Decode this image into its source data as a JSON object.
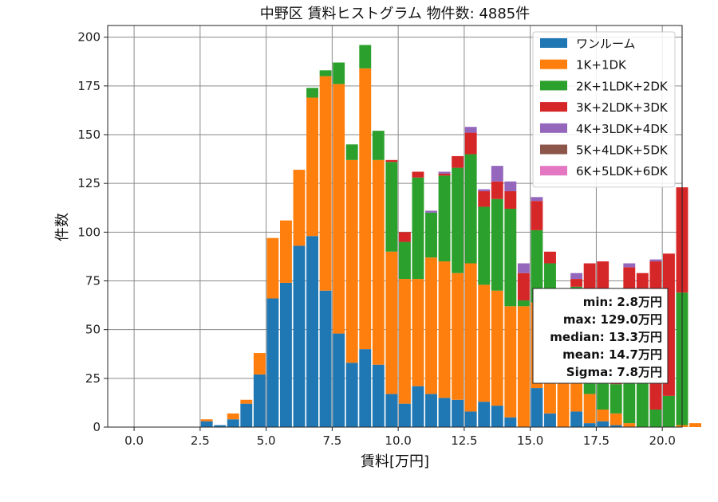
{
  "chart_data": {
    "type": "bar",
    "stacked": true,
    "title": "中野区 賃料ヒストグラム 物件数: 4885件",
    "xlabel": "賃料[万円]",
    "ylabel": "件数",
    "xlim": [
      -1.0,
      20.75
    ],
    "ylim": [
      0,
      206
    ],
    "xticks": [
      "0.0",
      "2.5",
      "5.0",
      "7.5",
      "10.0",
      "12.5",
      "15.0",
      "17.5",
      "20.0"
    ],
    "xtick_values": [
      0,
      2.5,
      5,
      7.5,
      10,
      12.5,
      15,
      17.5,
      20
    ],
    "yticks": [
      "0",
      "25",
      "50",
      "75",
      "100",
      "125",
      "150",
      "175",
      "200"
    ],
    "ytick_values": [
      0,
      25,
      50,
      75,
      100,
      125,
      150,
      175,
      200
    ],
    "grid": true,
    "legend_position": "top-right",
    "bin_start": 2.5,
    "bin_width": 0.5,
    "series": [
      {
        "name": "ワンルーム",
        "color": "#1f77b4",
        "values": [
          3,
          1,
          4,
          12,
          27,
          66,
          74,
          93,
          98,
          70,
          48,
          33,
          40,
          32,
          17,
          12,
          21,
          17,
          15,
          14,
          8,
          13,
          11,
          5,
          0,
          20,
          7,
          0,
          8,
          2,
          3,
          1,
          0,
          0,
          0,
          0,
          0,
          0
        ]
      },
      {
        "name": "1K+1DK",
        "color": "#ff7f0e",
        "values": [
          1,
          0,
          3,
          2,
          11,
          31,
          32,
          39,
          71,
          110,
          128,
          104,
          144,
          105,
          73,
          64,
          55,
          70,
          70,
          65,
          76,
          60,
          59,
          57,
          62,
          44,
          35,
          27,
          26,
          15,
          6,
          6,
          2,
          0,
          0,
          0,
          1,
          2
        ]
      },
      {
        "name": "2K+1LDK+2DK",
        "color": "#2ca02c",
        "values": [
          0,
          0,
          0,
          0,
          0,
          0,
          0,
          0,
          5,
          3,
          11,
          8,
          12,
          15,
          46,
          19,
          52,
          23,
          44,
          54,
          56,
          40,
          47,
          50,
          3,
          37,
          42,
          30,
          38,
          54,
          47,
          15,
          37,
          34,
          9,
          16,
          68,
          0
        ]
      },
      {
        "name": "3K+2LDK+3DK",
        "color": "#d62728",
        "values": [
          0,
          0,
          0,
          0,
          0,
          0,
          0,
          0,
          0,
          0,
          0,
          0,
          0,
          0,
          1,
          5,
          3,
          0,
          1,
          6,
          11,
          8,
          9,
          9,
          14,
          15,
          6,
          9,
          4,
          13,
          29,
          1,
          43,
          45,
          76,
          73,
          54,
          0
        ]
      },
      {
        "name": "4K+3LDK+4DK",
        "color": "#9467bd",
        "values": [
          0,
          0,
          0,
          0,
          0,
          0,
          0,
          0,
          0,
          0,
          0,
          0,
          0,
          0,
          0,
          0,
          0,
          1,
          1,
          0,
          3,
          1,
          8,
          5,
          5,
          2,
          0,
          2,
          3,
          0,
          0,
          0,
          2,
          0,
          1,
          0,
          0,
          0
        ]
      },
      {
        "name": "5K+4LDK+5DK",
        "color": "#8c564b",
        "values": [
          0,
          0,
          0,
          0,
          0,
          0,
          0,
          0,
          0,
          0,
          0,
          0,
          0,
          0,
          0,
          0,
          0,
          0,
          0,
          0,
          0,
          0,
          0,
          0,
          0,
          0,
          0,
          0,
          0,
          0,
          0,
          0,
          0,
          0,
          0,
          0,
          0,
          0
        ]
      },
      {
        "name": "6K+5LDK+6DK",
        "color": "#e377c2",
        "values": [
          0,
          0,
          0,
          0,
          0,
          0,
          0,
          0,
          0,
          0,
          0,
          0,
          0,
          0,
          0,
          0,
          0,
          0,
          0,
          0,
          0,
          0,
          0,
          0,
          0,
          0,
          0,
          0,
          0,
          0,
          0,
          0,
          0,
          0,
          0,
          0,
          0,
          0
        ]
      }
    ],
    "annotations": [
      "min: 2.8万円",
      "max: 129.0万円",
      "median: 13.3万円",
      "mean: 14.7万円",
      "Sigma: 7.8万円"
    ]
  }
}
